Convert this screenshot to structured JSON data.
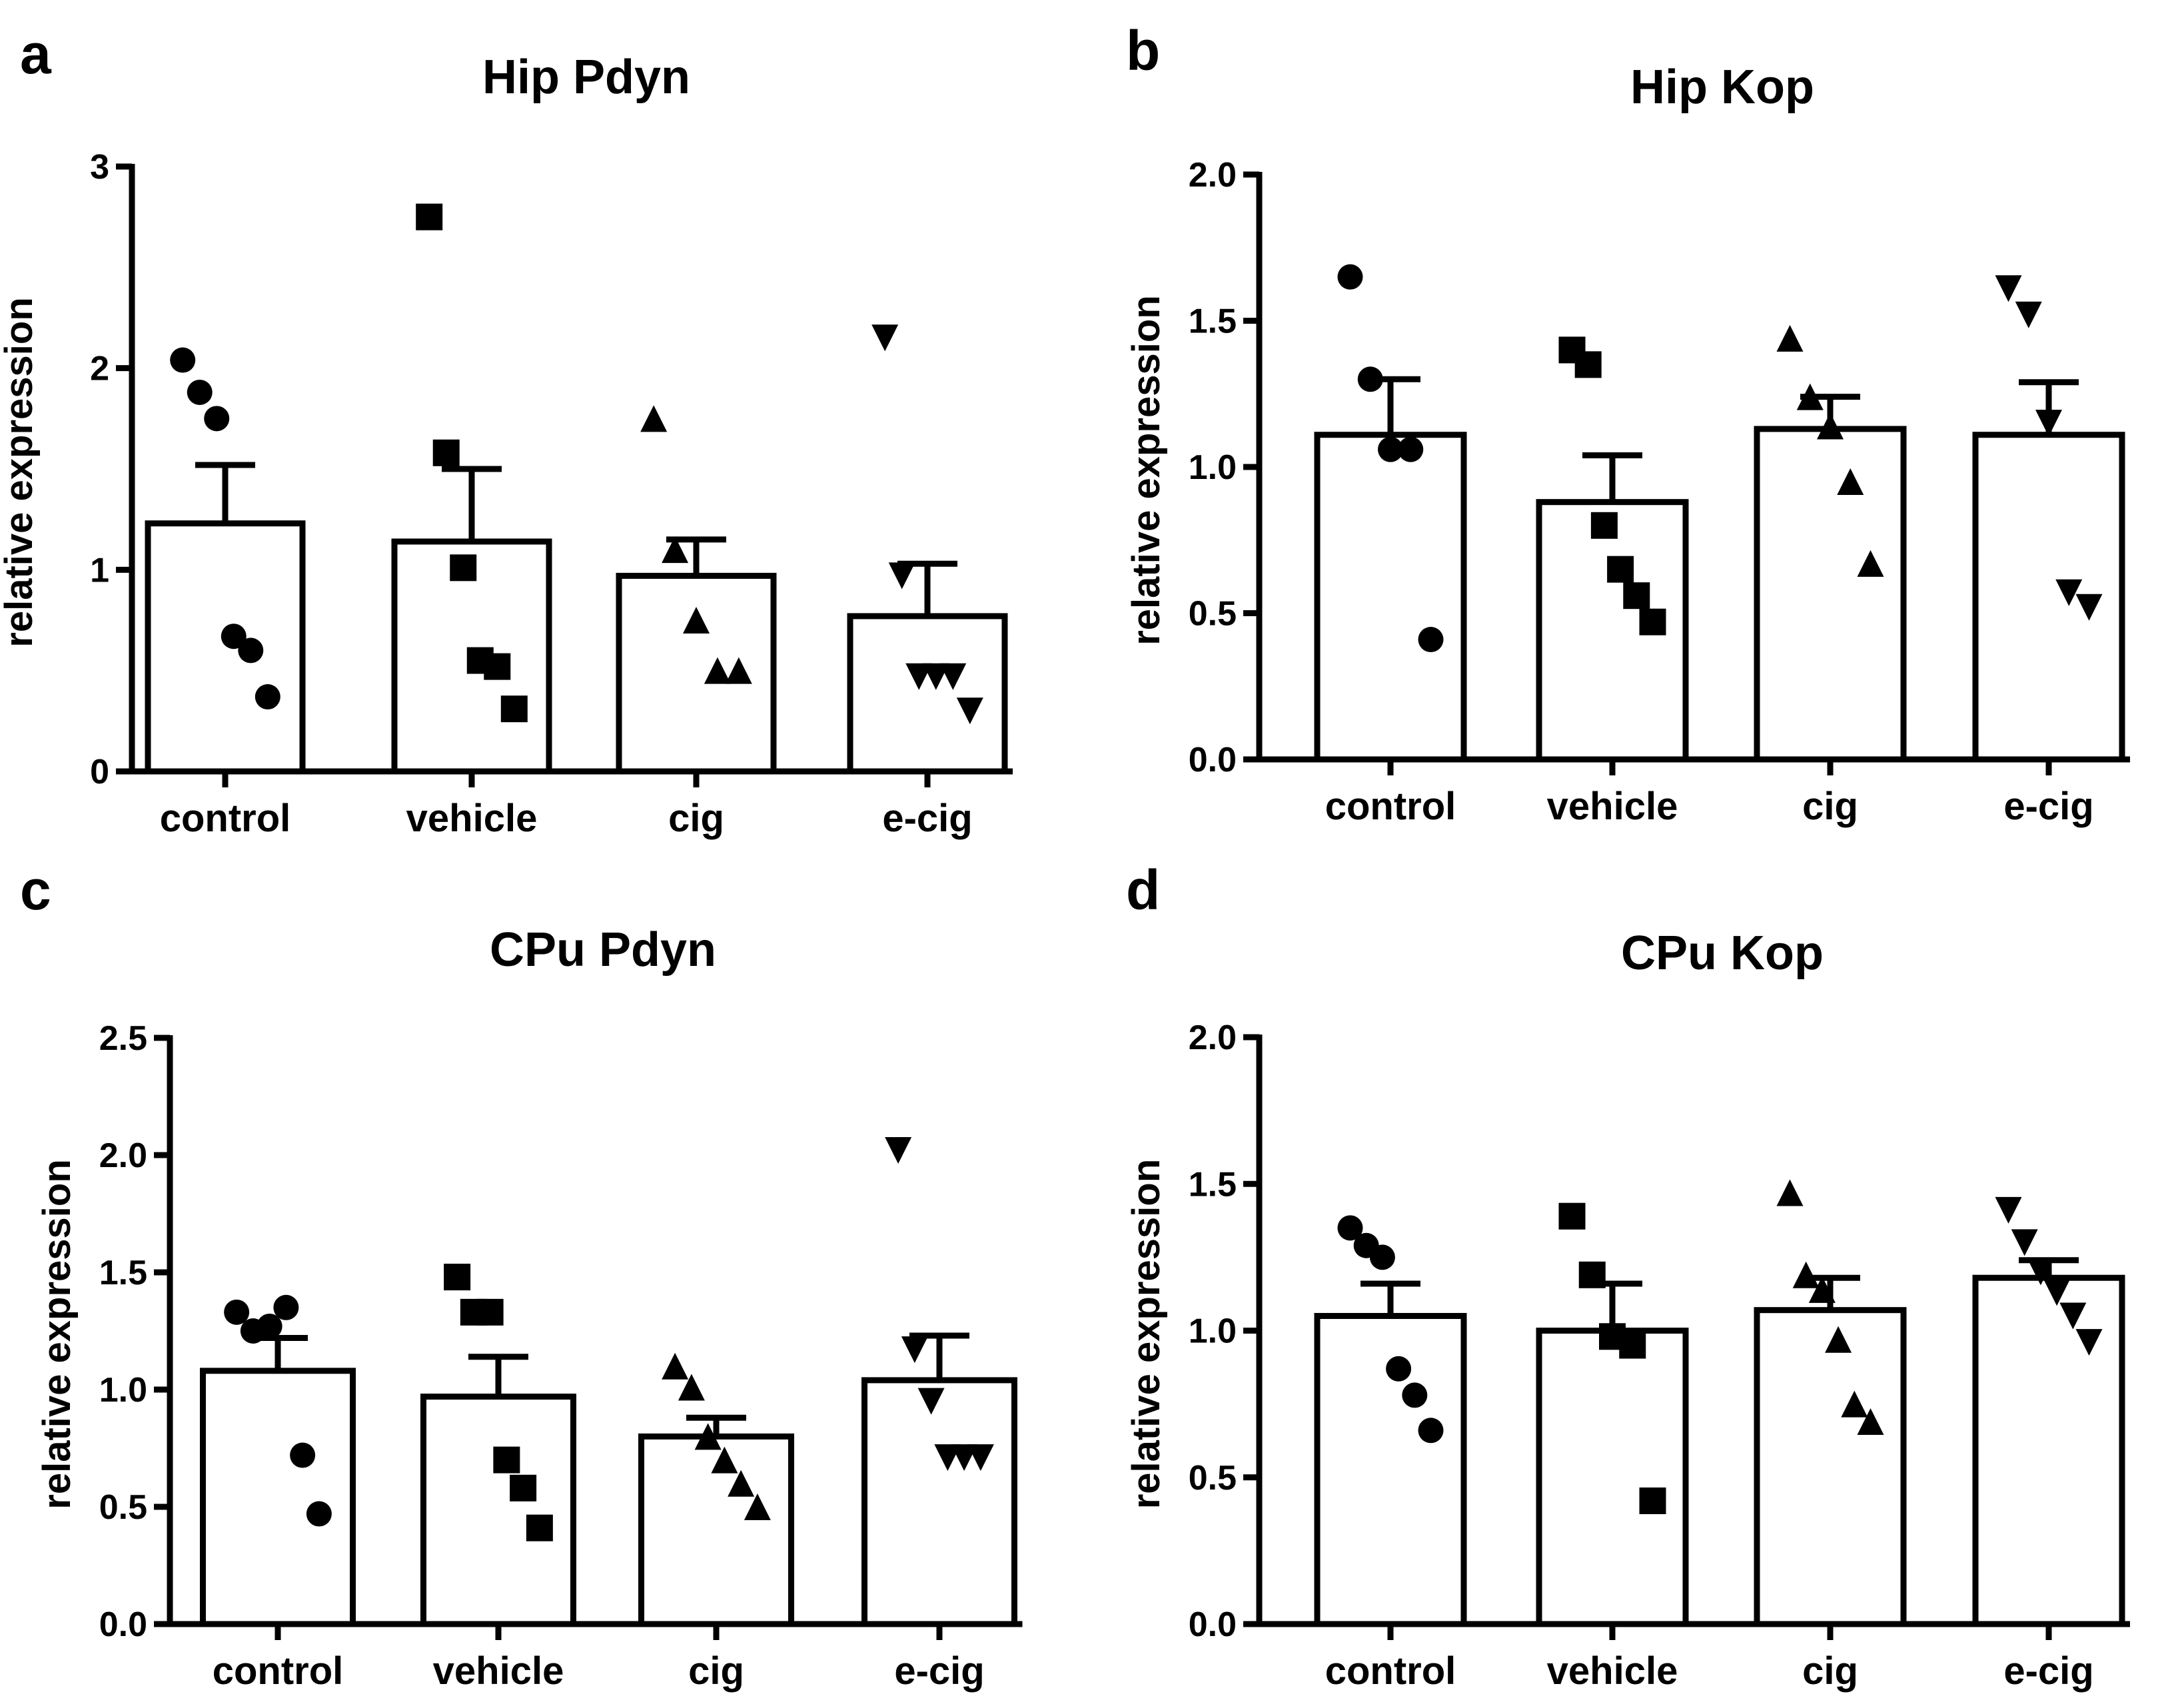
{
  "figure": {
    "panels": [
      "a",
      "b",
      "c",
      "d"
    ]
  },
  "chart_data": [
    {
      "panel": "a",
      "type": "bar",
      "title": "Hip Pdyn",
      "xlabel": "",
      "ylabel": "relative expression",
      "ylim": [
        0,
        3
      ],
      "yticks": [
        0,
        1,
        2,
        3
      ],
      "ytick_labels": [
        "0",
        "1",
        "2",
        "3"
      ],
      "categories": [
        "control",
        "vehicle",
        "cig",
        "e-cig"
      ],
      "markers": [
        "circle",
        "square",
        "triangle-up",
        "triangle-down"
      ],
      "means": [
        1.23,
        1.14,
        0.97,
        0.77
      ],
      "sem": [
        0.29,
        0.36,
        0.18,
        0.26
      ],
      "points": [
        [
          2.04,
          1.88,
          1.75,
          0.67,
          0.6,
          0.37
        ],
        [
          2.75,
          1.58,
          1.01,
          0.55,
          0.52,
          0.31
        ],
        [
          1.75,
          1.1,
          0.75,
          0.5,
          0.5
        ],
        [
          2.15,
          0.97,
          0.47,
          0.47,
          0.47,
          0.3
        ]
      ]
    },
    {
      "panel": "b",
      "type": "bar",
      "title": "Hip Kop",
      "xlabel": "",
      "ylabel": "relative expression",
      "ylim": [
        0,
        2.0
      ],
      "yticks": [
        0,
        0.5,
        1.0,
        1.5,
        2.0
      ],
      "ytick_labels": [
        "0.0",
        "0.5",
        "1.0",
        "1.5",
        "2.0"
      ],
      "categories": [
        "control",
        "vehicle",
        "cig",
        "e-cig"
      ],
      "markers": [
        "circle",
        "square",
        "triangle-up",
        "triangle-down"
      ],
      "means": [
        1.11,
        0.88,
        1.13,
        1.11
      ],
      "sem": [
        0.19,
        0.16,
        0.11,
        0.18
      ],
      "points": [
        [
          1.65,
          1.3,
          1.06,
          1.06,
          0.41
        ],
        [
          1.4,
          1.35,
          0.8,
          0.65,
          0.56,
          0.47
        ],
        [
          1.44,
          1.24,
          1.14,
          0.95,
          0.67
        ],
        [
          1.61,
          1.52,
          1.15,
          0.57,
          0.52
        ]
      ]
    },
    {
      "panel": "c",
      "type": "bar",
      "title": "CPu Pdyn",
      "xlabel": "",
      "ylabel": "relative expression",
      "ylim": [
        0,
        2.5
      ],
      "yticks": [
        0,
        0.5,
        1.0,
        1.5,
        2.0,
        2.5
      ],
      "ytick_labels": [
        "0.0",
        "0.5",
        "1.0",
        "1.5",
        "2.0",
        "2.5"
      ],
      "categories": [
        "control",
        "vehicle",
        "cig",
        "e-cig"
      ],
      "markers": [
        "circle",
        "square",
        "triangle-up",
        "triangle-down"
      ],
      "means": [
        1.08,
        0.97,
        0.8,
        1.04
      ],
      "sem": [
        0.14,
        0.17,
        0.08,
        0.19
      ],
      "points": [
        [
          1.33,
          1.25,
          1.27,
          1.35,
          0.72,
          0.47
        ],
        [
          1.48,
          1.33,
          1.33,
          0.7,
          0.58,
          0.41
        ],
        [
          1.1,
          1.01,
          0.8,
          0.7,
          0.6,
          0.5
        ],
        [
          2.02,
          1.17,
          0.95,
          0.71,
          0.71,
          0.71
        ]
      ]
    },
    {
      "panel": "d",
      "type": "bar",
      "title": "CPu Kop",
      "xlabel": "",
      "ylabel": "relative expression",
      "ylim": [
        0,
        2.0
      ],
      "yticks": [
        0,
        0.5,
        1.0,
        1.5,
        2.0
      ],
      "ytick_labels": [
        "0.0",
        "0.5",
        "1.0",
        "1.5",
        "2.0"
      ],
      "categories": [
        "control",
        "vehicle",
        "cig",
        "e-cig"
      ],
      "markers": [
        "circle",
        "square",
        "triangle-up",
        "triangle-down"
      ],
      "means": [
        1.05,
        1.0,
        1.07,
        1.18
      ],
      "sem": [
        0.11,
        0.16,
        0.11,
        0.06
      ],
      "points": [
        [
          1.35,
          1.29,
          1.25,
          0.87,
          0.78,
          0.66
        ],
        [
          1.39,
          1.19,
          0.98,
          0.95,
          0.42
        ],
        [
          1.47,
          1.19,
          1.14,
          0.97,
          0.75,
          0.69
        ],
        [
          1.41,
          1.3,
          1.2,
          1.13,
          1.05,
          0.96
        ]
      ]
    }
  ]
}
